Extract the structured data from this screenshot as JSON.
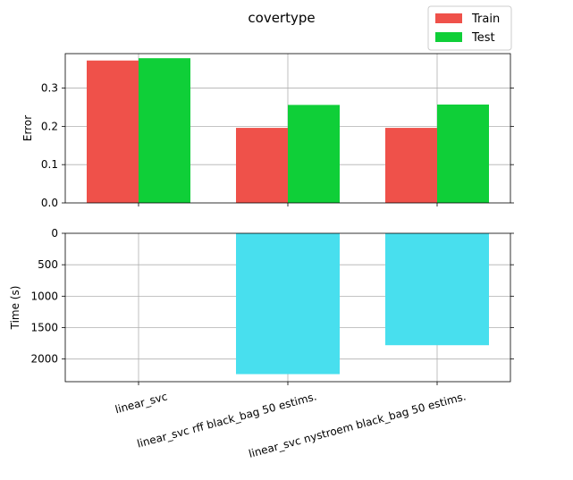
{
  "chart_data": {
    "title": "covertype",
    "legend": {
      "placement": "top-right",
      "entries": [
        {
          "name": "Train",
          "color": "#ef514a"
        },
        {
          "name": "Test",
          "color": "#0fcf38"
        }
      ]
    },
    "categories": [
      "linear_svc",
      "linear_svc rff black_bag 50 estims.",
      "linear_svc nystroem black_bag 50 estims."
    ],
    "grid": true,
    "panels": [
      {
        "type": "bar",
        "ylabel": "Error",
        "ylim": [
          0,
          0.39
        ],
        "yticks": [
          "0.0",
          "0.1",
          "0.2",
          "0.3"
        ],
        "series": [
          {
            "name": "Train",
            "color": "#ef514a",
            "values": [
              0.372,
              0.196,
              0.196
            ]
          },
          {
            "name": "Test",
            "color": "#0fcf38",
            "values": [
              0.378,
              0.256,
              0.257
            ]
          }
        ]
      },
      {
        "type": "bar",
        "ylabel": "Time (s)",
        "ylim": [
          0,
          2360
        ],
        "inverted": true,
        "yticks": [
          "0",
          "500",
          "1000",
          "1500",
          "2000"
        ],
        "series": [
          {
            "name": "Time",
            "color": "#48dfee",
            "values": [
              0,
              2240,
              1780
            ]
          }
        ]
      }
    ]
  }
}
